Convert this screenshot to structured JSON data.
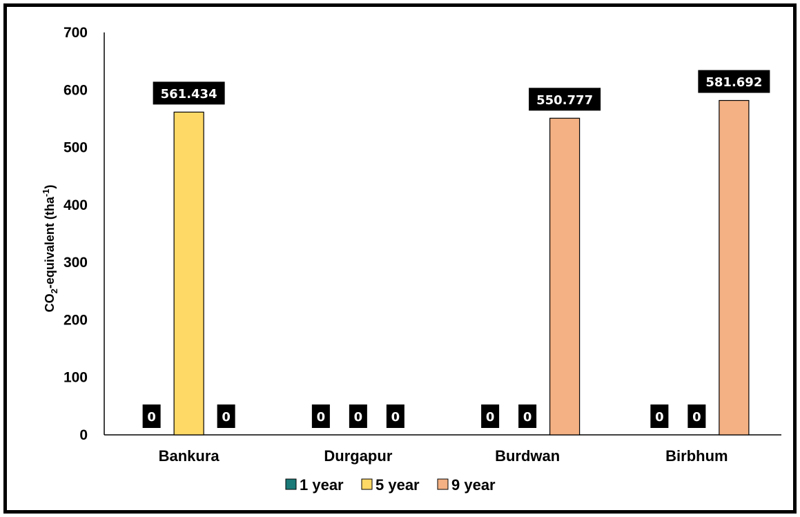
{
  "chart_data": {
    "type": "bar",
    "categories": [
      "Bankura",
      "Durgapur",
      "Burdwan",
      "Birbhum"
    ],
    "series": [
      {
        "name": "1 year",
        "color": "#1a7a78",
        "values": [
          0,
          0,
          0,
          0
        ],
        "labels": [
          "0",
          "0",
          "0",
          "0"
        ]
      },
      {
        "name": "5 year",
        "color": "#ffd966",
        "values": [
          561.434,
          0,
          0,
          0
        ],
        "labels": [
          "561.434",
          "0",
          "0",
          "0"
        ]
      },
      {
        "name": "9 year",
        "color": "#f4b183",
        "values": [
          0,
          0,
          550.777,
          581.692
        ],
        "labels": [
          "0",
          "0",
          "550.777",
          "581.692"
        ]
      }
    ],
    "ylim": [
      0,
      700
    ],
    "yticks": [
      "0",
      "100",
      "200",
      "300",
      "400",
      "500",
      "600",
      "700"
    ],
    "ylabel": {
      "main": "CO",
      "sub": "2",
      "rest": "-equivalent (tha",
      "sup": "-1",
      "end": ")"
    },
    "xlabel": "",
    "title": "",
    "grid": false,
    "legend_position": "bottom"
  }
}
